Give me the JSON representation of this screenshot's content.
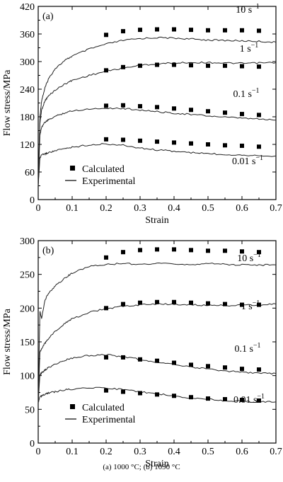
{
  "caption": "(a) 1000 °C; (b) 1090 °C",
  "chart_data": [
    {
      "type": "line",
      "panel_label": "(a)",
      "xlabel": "Strain",
      "ylabel": "Flow stress/MPa",
      "xlim": [
        0,
        0.7
      ],
      "ylim": [
        0,
        420
      ],
      "x_ticks": [
        "0",
        "0.1",
        "0.2",
        "0.3",
        "0.4",
        "0.5",
        "0.6",
        "0.7"
      ],
      "y_ticks": [
        "0",
        "60",
        "120",
        "180",
        "240",
        "300",
        "360",
        "420"
      ],
      "legend": {
        "position": "bottom-left",
        "marker_label": "Calculated",
        "line_label": "Experimental"
      },
      "series": [
        {
          "name": "10 s⁻¹",
          "experimental": {
            "x": [
              0,
              0.005,
              0.01,
              0.02,
              0.03,
              0.05,
              0.08,
              0.1,
              0.15,
              0.2,
              0.25,
              0.3,
              0.35,
              0.4,
              0.45,
              0.5,
              0.55,
              0.6,
              0.65,
              0.7
            ],
            "y": [
              30,
              180,
              215,
              243,
              262,
              285,
              303,
              312,
              327,
              338,
              346,
              350,
              352,
              351,
              349,
              347,
              346,
              345,
              344,
              342
            ]
          },
          "calculated": {
            "x": [
              0.2,
              0.25,
              0.3,
              0.35,
              0.4,
              0.45,
              0.5,
              0.55,
              0.6,
              0.65
            ],
            "y": [
              358,
              366,
              369,
              370,
              370,
              369,
              368,
              368,
              368,
              367
            ]
          }
        },
        {
          "name": "1 s⁻¹",
          "experimental": {
            "x": [
              0,
              0.005,
              0.01,
              0.02,
              0.03,
              0.05,
              0.08,
              0.1,
              0.15,
              0.2,
              0.25,
              0.3,
              0.35,
              0.4,
              0.45,
              0.5,
              0.55,
              0.6,
              0.65,
              0.7
            ],
            "y": [
              30,
              165,
              195,
              215,
              225,
              238,
              252,
              259,
              270,
              279,
              286,
              292,
              295,
              297,
              298,
              298,
              297,
              296,
              297,
              298
            ]
          },
          "calculated": {
            "x": [
              0.2,
              0.25,
              0.3,
              0.35,
              0.4,
              0.45,
              0.5,
              0.55,
              0.6,
              0.65
            ],
            "y": [
              281,
              288,
              291,
              293,
              293,
              292,
              291,
              291,
              290,
              289
            ]
          }
        },
        {
          "name": "0.1 s⁻¹",
          "experimental": {
            "x": [
              0,
              0.005,
              0.01,
              0.02,
              0.03,
              0.05,
              0.08,
              0.1,
              0.15,
              0.2,
              0.25,
              0.3,
              0.35,
              0.4,
              0.45,
              0.5,
              0.55,
              0.6,
              0.65,
              0.7
            ],
            "y": [
              30,
              140,
              158,
              168,
              173,
              181,
              189,
              193,
              197,
              199,
              198,
              195,
              191,
              188,
              185,
              182,
              179,
              177,
              175,
              173
            ]
          },
          "calculated": {
            "x": [
              0.2,
              0.25,
              0.3,
              0.35,
              0.4,
              0.45,
              0.5,
              0.55,
              0.6,
              0.65
            ],
            "y": [
              204,
              205,
              203,
              201,
              198,
              195,
              192,
              189,
              186,
              184
            ]
          }
        },
        {
          "name": "0.01 s⁻¹",
          "experimental": {
            "x": [
              0,
              0.005,
              0.01,
              0.02,
              0.03,
              0.05,
              0.08,
              0.1,
              0.15,
              0.2,
              0.25,
              0.3,
              0.35,
              0.4,
              0.45,
              0.5,
              0.55,
              0.6,
              0.65,
              0.7
            ],
            "y": [
              30,
              90,
              97,
              99,
              102,
              106,
              111,
              114,
              119,
              121,
              118,
              112,
              108,
              105,
              102,
              100,
              98,
              97,
              96,
              95
            ]
          },
          "calculated": {
            "x": [
              0.2,
              0.25,
              0.3,
              0.35,
              0.4,
              0.45,
              0.5,
              0.55,
              0.6,
              0.65
            ],
            "y": [
              131,
              130,
              128,
              126,
              124,
              122,
              120,
              118,
              117,
              115
            ]
          }
        }
      ]
    },
    {
      "type": "line",
      "panel_label": "(b)",
      "xlabel": "Strain",
      "ylabel": "Flow stress/MPa",
      "xlim": [
        0,
        0.7
      ],
      "ylim": [
        0,
        300
      ],
      "x_ticks": [
        "0",
        "0.1",
        "0.2",
        "0.3",
        "0.4",
        "0.5",
        "0.6",
        "0.7"
      ],
      "y_ticks": [
        "0",
        "50",
        "100",
        "150",
        "200",
        "250",
        "300"
      ],
      "legend": {
        "position": "bottom-left",
        "marker_label": "Calculated",
        "line_label": "Experimental"
      },
      "series": [
        {
          "name": "10 s⁻¹",
          "experimental": {
            "x": [
              0,
              0.005,
              0.01,
              0.02,
              0.03,
              0.05,
              0.08,
              0.1,
              0.15,
              0.2,
              0.25,
              0.3,
              0.35,
              0.4,
              0.45,
              0.5,
              0.55,
              0.6,
              0.65,
              0.7
            ],
            "y": [
              60,
              195,
              185,
              212,
              222,
              233,
              245,
              252,
              262,
              265,
              266,
              265,
              266,
              265,
              265,
              266,
              265,
              264,
              264,
              264
            ]
          },
          "calculated": {
            "x": [
              0.2,
              0.25,
              0.3,
              0.35,
              0.4,
              0.45,
              0.5,
              0.55,
              0.6,
              0.65
            ],
            "y": [
              275,
              283,
              286,
              287,
              287,
              286,
              285,
              285,
              284,
              283
            ]
          }
        },
        {
          "name": "1 s⁻¹",
          "experimental": {
            "x": [
              0,
              0.005,
              0.01,
              0.02,
              0.03,
              0.05,
              0.08,
              0.1,
              0.15,
              0.2,
              0.25,
              0.3,
              0.35,
              0.4,
              0.45,
              0.5,
              0.55,
              0.6,
              0.65,
              0.7
            ],
            "y": [
              60,
              135,
              140,
              148,
              155,
              166,
              178,
              184,
              194,
              199,
              203,
              205,
              206,
              206,
              205,
              204,
              204,
              204,
              205,
              206
            ]
          },
          "calculated": {
            "x": [
              0.2,
              0.25,
              0.3,
              0.35,
              0.4,
              0.45,
              0.5,
              0.55,
              0.6,
              0.65
            ],
            "y": [
              200,
              206,
              208,
              209,
              209,
              208,
              207,
              206,
              205,
              205
            ]
          }
        },
        {
          "name": "0.1 s⁻¹",
          "experimental": {
            "x": [
              0,
              0.005,
              0.01,
              0.02,
              0.03,
              0.05,
              0.08,
              0.1,
              0.15,
              0.2,
              0.25,
              0.3,
              0.35,
              0.4,
              0.45,
              0.5,
              0.55,
              0.6,
              0.65,
              0.7
            ],
            "y": [
              60,
              100,
              104,
              108,
              112,
              117,
              123,
              126,
              130,
              131,
              128,
              124,
              120,
              116,
              113,
              110,
              107,
              105,
              104,
              103
            ]
          },
          "calculated": {
            "x": [
              0.2,
              0.25,
              0.3,
              0.35,
              0.4,
              0.45,
              0.5,
              0.55,
              0.6,
              0.65
            ],
            "y": [
              127,
              127,
              124,
              122,
              119,
              116,
              114,
              112,
              110,
              109
            ]
          }
        },
        {
          "name": "0.01 s⁻¹",
          "experimental": {
            "x": [
              0,
              0.005,
              0.01,
              0.02,
              0.03,
              0.05,
              0.08,
              0.1,
              0.15,
              0.2,
              0.25,
              0.3,
              0.35,
              0.4,
              0.45,
              0.5,
              0.55,
              0.6,
              0.65,
              0.7
            ],
            "y": [
              60,
              68,
              70,
              72,
              74,
              76,
              79,
              80,
              82,
              82,
              79,
              76,
              73,
              70,
              67,
              65,
              63,
              62,
              61,
              61
            ]
          },
          "calculated": {
            "x": [
              0.2,
              0.25,
              0.3,
              0.35,
              0.4,
              0.45,
              0.5,
              0.55,
              0.6,
              0.65
            ],
            "y": [
              78,
              76,
              74,
              72,
              70,
              68,
              66,
              65,
              64,
              63
            ]
          }
        }
      ]
    }
  ]
}
